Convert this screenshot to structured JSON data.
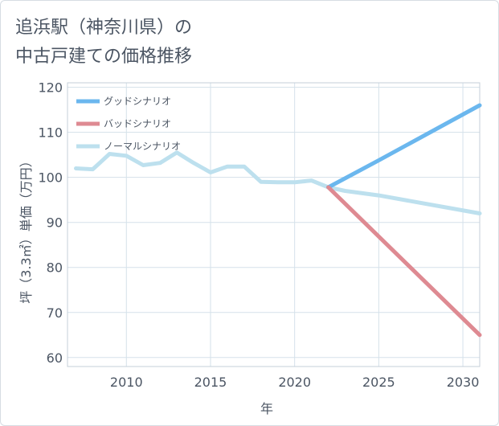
{
  "chart_data": {
    "type": "line",
    "title_lines": [
      "追浜駅（神奈川県）の",
      "中古戸建ての価格推移"
    ],
    "xlabel": "年",
    "ylabel": "坪（3.3㎡）単価（万円）",
    "xlim": [
      2006.5,
      2031
    ],
    "ylim": [
      58,
      121
    ],
    "x_ticks": [
      2010,
      2015,
      2020,
      2025,
      2030
    ],
    "y_ticks": [
      60,
      70,
      80,
      90,
      100,
      110,
      120
    ],
    "grid": true,
    "legend_position": "top-left",
    "series": [
      {
        "name": "グッドシナリオ",
        "color": "#6bb7ee",
        "x": [
          2022,
          2025,
          2031
        ],
        "y": [
          97.8,
          103.8,
          116
        ]
      },
      {
        "name": "バッドシナリオ",
        "color": "#de8a92",
        "x": [
          2022,
          2031
        ],
        "y": [
          97.8,
          65
        ]
      },
      {
        "name": "ノーマルシナリオ",
        "color": "#bde0ee",
        "x": [
          2007,
          2008,
          2009,
          2010,
          2011,
          2012,
          2013,
          2014,
          2015,
          2016,
          2017,
          2018,
          2019,
          2020,
          2021,
          2022,
          2023,
          2025,
          2031
        ],
        "y": [
          102,
          101.8,
          105.2,
          104.8,
          102.7,
          103.2,
          105.5,
          103.2,
          101.1,
          102.4,
          102.4,
          99,
          98.9,
          98.9,
          99.3,
          97.8,
          97,
          96,
          92
        ]
      }
    ]
  }
}
